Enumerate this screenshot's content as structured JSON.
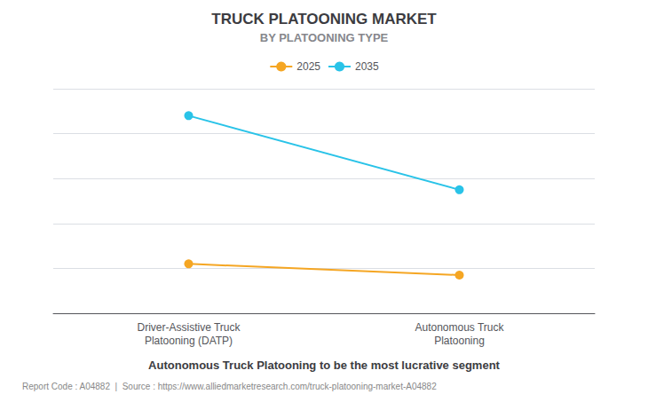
{
  "chart_data": {
    "type": "line",
    "title": "TRUCK PLATOONING MARKET",
    "subtitle": "BY PLATOONING TYPE",
    "categories": [
      "Driver-Assistive Truck\nPlatooning (DATP)",
      "Autonomous Truck\nPlatooning"
    ],
    "series": [
      {
        "name": "2025",
        "color": "#F5A623",
        "values": [
          0.22,
          0.17
        ]
      },
      {
        "name": "2035",
        "color": "#29C3E8",
        "values": [
          0.88,
          0.55
        ]
      }
    ],
    "ylim": [
      0,
      1
    ],
    "yticks": [
      0,
      0.2,
      0.4,
      0.6,
      0.8,
      1
    ],
    "grid": true,
    "legend": "top",
    "tick_labels": "x",
    "marker": "circle",
    "annotations": [
      "Autonomous Truck Platooning to be the most lucrative segment",
      "Report Code : A04882  |  Source : https://www.alliedmarketresearch.com/truck-platooning-market-A04882"
    ]
  }
}
